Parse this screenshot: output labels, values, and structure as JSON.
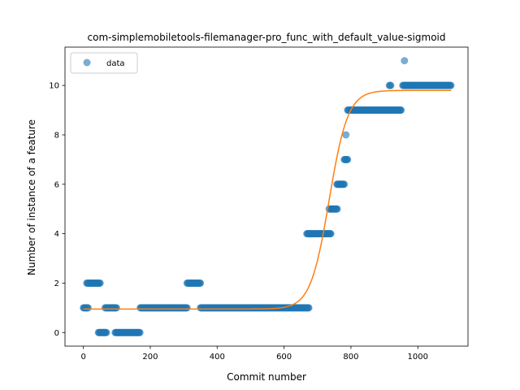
{
  "chart_data": {
    "type": "scatter",
    "title": "com-simplemobiletools-filemanager-pro_func_with_default_value-sigmoid",
    "xlabel": "Commit number",
    "ylabel": "Number of instance of a feature",
    "xlim": [
      -55,
      1150
    ],
    "ylim": [
      -0.55,
      11.55
    ],
    "xticks": [
      0,
      200,
      400,
      600,
      800,
      1000
    ],
    "yticks": [
      0,
      2,
      4,
      6,
      8,
      10
    ],
    "grid": false,
    "legend": {
      "position": "top-left",
      "entries": [
        "data"
      ]
    },
    "colors": {
      "points": "#1f77b4",
      "fit": "#ff7f0e"
    },
    "series": [
      {
        "name": "data",
        "kind": "scatter",
        "segments": [
          {
            "x_start": 0,
            "x_end": 15,
            "y": 1
          },
          {
            "x_start": 10,
            "x_end": 50,
            "y": 2
          },
          {
            "x_start": 45,
            "x_end": 70,
            "y": 0
          },
          {
            "x_start": 65,
            "x_end": 100,
            "y": 1
          },
          {
            "x_start": 95,
            "x_end": 170,
            "y": 0
          },
          {
            "x_start": 170,
            "x_end": 310,
            "y": 1
          },
          {
            "x_start": 310,
            "x_end": 350,
            "y": 2
          },
          {
            "x_start": 350,
            "x_end": 675,
            "y": 1
          },
          {
            "x_start": 668,
            "x_end": 740,
            "y": 4
          },
          {
            "x_start": 735,
            "x_end": 760,
            "y": 5
          },
          {
            "x_start": 758,
            "x_end": 780,
            "y": 6
          },
          {
            "x_start": 780,
            "x_end": 790,
            "y": 7
          },
          {
            "x_start": 790,
            "x_end": 950,
            "y": 9
          },
          {
            "x_start": 915,
            "x_end": 920,
            "y": 10
          },
          {
            "x_start": 955,
            "x_end": 1100,
            "y": 10
          }
        ],
        "points": [
          {
            "x": 785,
            "y": 8
          },
          {
            "x": 960,
            "y": 11
          }
        ]
      },
      {
        "kind": "line",
        "fit": {
          "model": "sigmoid",
          "L": 8.85,
          "k": 0.0357,
          "x0": 735,
          "b": 0.95,
          "x_range": [
            0,
            1100
          ]
        }
      }
    ]
  }
}
